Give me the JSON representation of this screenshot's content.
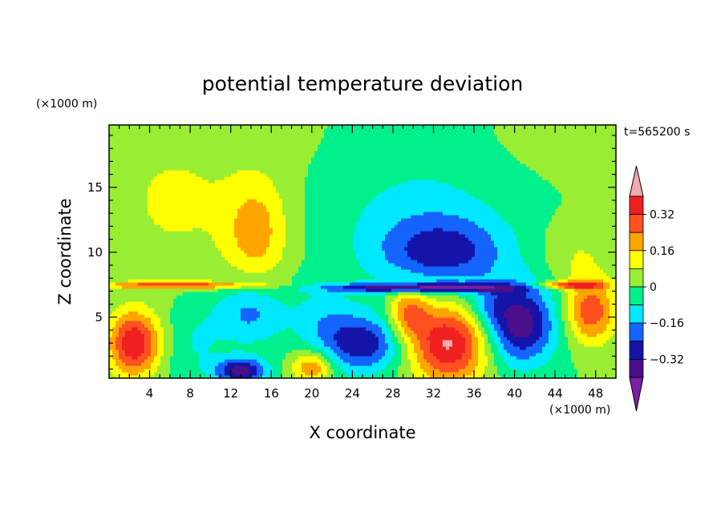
{
  "title": "potential temperature deviation",
  "time_label": "t=565200 s",
  "chart_data": {
    "type": "heatmap",
    "title": "potential temperature deviation",
    "xlabel": "X coordinate",
    "ylabel": "Z coordinate",
    "x_unit": "(×1000 m)",
    "y_unit": "(×1000 m)",
    "xlim": [
      0,
      50
    ],
    "ylim": [
      0.3,
      19.8
    ],
    "x_ticks": [
      4,
      8,
      12,
      16,
      20,
      24,
      28,
      32,
      36,
      40,
      44,
      48
    ],
    "y_ticks": [
      5,
      10,
      15
    ],
    "colorbar": {
      "levels": [
        -0.4,
        -0.32,
        -0.24,
        -0.16,
        -0.08,
        0,
        0.08,
        0.16,
        0.24,
        0.32,
        0.4
      ],
      "tick_labels": [
        "0.32",
        "0.16",
        "0",
        "−0.16",
        "−0.32"
      ],
      "tick_values": [
        0.32,
        0.16,
        0,
        -0.16,
        -0.32
      ],
      "colors": [
        "#7a1fa2",
        "#4b0f8c",
        "#1414a8",
        "#1464ff",
        "#00e8ff",
        "#00f08c",
        "#99ee33",
        "#ffff00",
        "#ffa500",
        "#ff5020",
        "#f02020",
        "#f4a8b0"
      ]
    },
    "features": [
      {
        "cx": 6.5,
        "cz": 14.0,
        "rx": 6,
        "rz": 5,
        "v": 0.1
      },
      {
        "cx": 14.5,
        "cz": 11.5,
        "rx": 3.2,
        "rz": 4.5,
        "v": 0.2
      },
      {
        "cx": 34,
        "cz": 17.5,
        "rx": 16,
        "rz": 3.5,
        "v": 0.03
      },
      {
        "cx": 31,
        "cz": 13,
        "rx": 9,
        "rz": 6,
        "v": -0.12
      },
      {
        "cx": 33,
        "cz": 10,
        "rx": 6,
        "rz": 2.5,
        "v": -0.22
      },
      {
        "cx": 46,
        "cz": 10,
        "rx": 3.5,
        "rz": 2.5,
        "v": 0.08
      },
      {
        "cx": 2.5,
        "cz": 3.0,
        "rx": 2.5,
        "rz": 2.5,
        "v": 0.4
      },
      {
        "cx": 33.5,
        "cz": 3.0,
        "rx": 4,
        "rz": 3.0,
        "v": 0.42
      },
      {
        "cx": 40.5,
        "cz": 4.5,
        "rx": 3.5,
        "rz": 3.0,
        "v": -0.38
      },
      {
        "cx": 47.5,
        "cz": 5.5,
        "rx": 2.5,
        "rz": 2.5,
        "v": 0.3
      },
      {
        "cx": 14,
        "cz": 5.5,
        "rx": 3.5,
        "rz": 2.5,
        "v": -0.2
      },
      {
        "cx": 25,
        "cz": 3.0,
        "rx": 4,
        "rz": 2.2,
        "v": -0.3
      },
      {
        "cx": 13,
        "cz": 0.9,
        "rx": 2.5,
        "rz": 1.0,
        "v": -0.35
      },
      {
        "cx": 20,
        "cz": 1.2,
        "rx": 2,
        "rz": 1.2,
        "v": 0.25
      },
      {
        "cx": 21,
        "cz": 5.0,
        "rx": 3,
        "rz": 2.5,
        "v": -0.1
      },
      {
        "cx": 8.5,
        "cz": 3.0,
        "rx": 3,
        "rz": 3.0,
        "v": -0.08
      },
      {
        "cx": 31,
        "cz": 7.3,
        "rx": 9,
        "rz": 0.35,
        "v": -0.4
      },
      {
        "cx": 7,
        "cz": 7.5,
        "rx": 8,
        "rz": 0.3,
        "v": 0.3
      },
      {
        "cx": 45.5,
        "cz": 7.5,
        "rx": 3.5,
        "rz": 0.3,
        "v": 0.3
      },
      {
        "cx": 29.5,
        "cz": 5.5,
        "rx": 2,
        "rz": 2.0,
        "v": 0.25
      },
      {
        "cx": 37.5,
        "cz": 6.0,
        "rx": 2,
        "rz": 1.5,
        "v": -0.1
      }
    ]
  }
}
